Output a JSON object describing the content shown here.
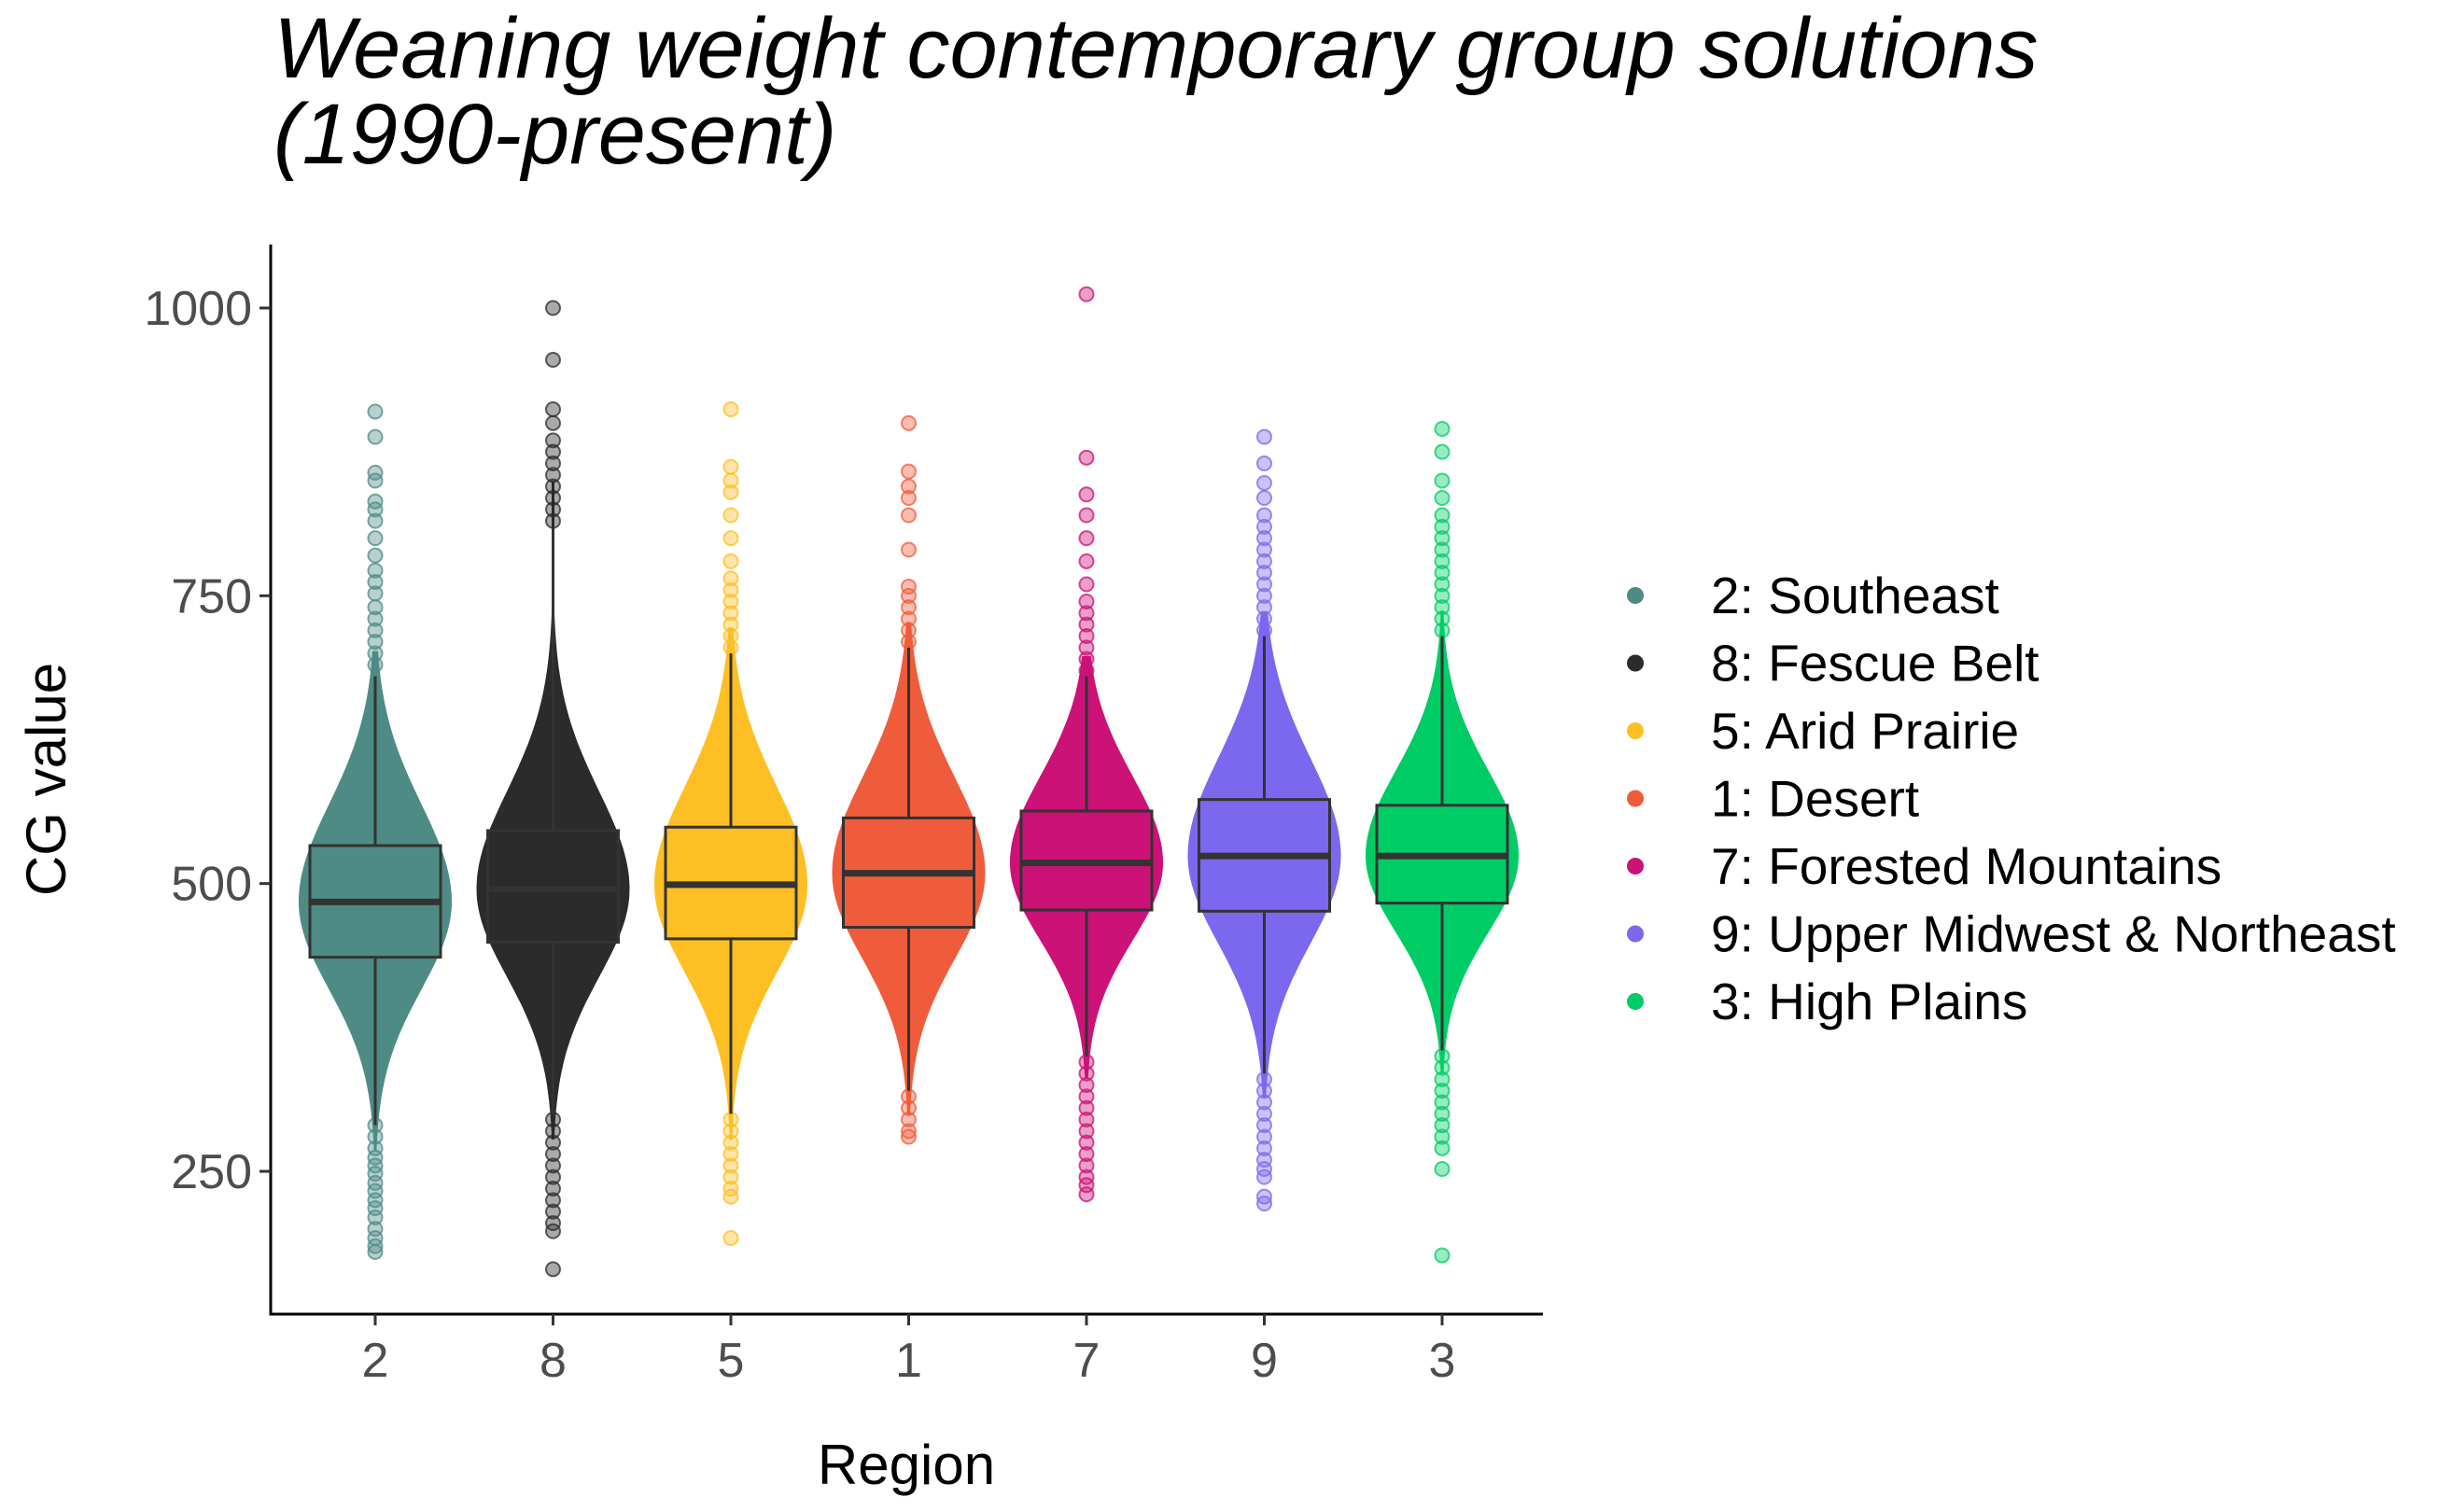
{
  "chart_data": {
    "type": "violin",
    "title": [
      "Weaning weight contemporary group solutions",
      "(1990-present)"
    ],
    "xlabel": "Region",
    "ylabel": "CG value",
    "ylim": [
      120,
      1050
    ],
    "yticks": [
      250,
      500,
      750,
      1000
    ],
    "categories": [
      "2",
      "8",
      "5",
      "1",
      "7",
      "9",
      "3"
    ],
    "legend": {
      "position": "right"
    },
    "grid": false,
    "series": [
      {
        "category": "2",
        "name": "2: Southeast",
        "color": "#4e8b85",
        "min": 180,
        "whisker_low": 290,
        "q1": 436,
        "median": 484,
        "q3": 533,
        "whisker_high": 680,
        "max": 910,
        "outliers_low": [
          290,
          280,
          270,
          262,
          255,
          248,
          240,
          233,
          225,
          218,
          210,
          200,
          192,
          185,
          180
        ],
        "outliers_high": [
          690,
          700,
          710,
          720,
          730,
          740,
          752,
          762,
          772,
          785,
          800,
          815,
          825,
          832,
          850,
          857,
          888,
          910
        ]
      },
      {
        "category": "8",
        "name": "8: Fescue Belt",
        "color": "#2b2b2b",
        "min": 165,
        "whisker_low": 300,
        "q1": 449,
        "median": 495,
        "q3": 546,
        "whisker_high": 810,
        "max": 1000,
        "outliers_low": [
          295,
          285,
          275,
          265,
          255,
          245,
          235,
          225,
          215,
          205,
          198,
          165
        ],
        "outliers_high": [
          815,
          825,
          835,
          845,
          855,
          865,
          875,
          885,
          900,
          912,
          955,
          1000
        ]
      },
      {
        "category": "5",
        "name": "5: Arid Prairie",
        "color": "#fdbf24",
        "min": 192,
        "whisker_low": 300,
        "q1": 452,
        "median": 499,
        "q3": 549,
        "whisker_high": 700,
        "max": 912,
        "outliers_low": [
          295,
          285,
          275,
          265,
          255,
          245,
          235,
          228,
          192
        ],
        "outliers_high": [
          705,
          715,
          725,
          735,
          745,
          755,
          765,
          780,
          800,
          820,
          840,
          850,
          862,
          912
        ]
      },
      {
        "category": "1",
        "name": "1: Desert",
        "color": "#ef5c3c",
        "min": 280,
        "whisker_low": 320,
        "q1": 462,
        "median": 509,
        "q3": 557,
        "whisker_high": 705,
        "max": 900,
        "outliers_low": [
          315,
          305,
          295,
          285,
          280
        ],
        "outliers_high": [
          710,
          720,
          730,
          740,
          750,
          758,
          790,
          820,
          835,
          845,
          858,
          900
        ]
      },
      {
        "category": "7",
        "name": "7: Forested Mountains",
        "color": "#cc1177",
        "min": 230,
        "whisker_low": 350,
        "q1": 477,
        "median": 518,
        "q3": 563,
        "whisker_high": 680,
        "max": 1012,
        "outliers_low": [
          345,
          335,
          325,
          315,
          305,
          295,
          285,
          275,
          265,
          255,
          245,
          238,
          230
        ],
        "outliers_high": [
          685,
          695,
          705,
          715,
          725,
          735,
          745,
          760,
          780,
          800,
          820,
          838,
          870,
          1012
        ]
      },
      {
        "category": "9",
        "name": "9: Upper Midwest & Northeast",
        "color": "#7b68ee",
        "min": 222,
        "whisker_low": 335,
        "q1": 476,
        "median": 524,
        "q3": 573,
        "whisker_high": 715,
        "max": 888,
        "outliers_low": [
          330,
          320,
          310,
          300,
          290,
          280,
          270,
          260,
          252,
          245,
          228,
          222
        ],
        "outliers_high": [
          720,
          730,
          740,
          750,
          760,
          770,
          780,
          790,
          800,
          810,
          820,
          835,
          848,
          865,
          888
        ]
      },
      {
        "category": "3",
        "name": "3: High Plains",
        "color": "#00cc66",
        "min": 177,
        "whisker_low": 355,
        "q1": 483,
        "median": 524,
        "q3": 568,
        "whisker_high": 715,
        "max": 895,
        "outliers_low": [
          350,
          340,
          330,
          320,
          310,
          300,
          290,
          280,
          270,
          252,
          177
        ],
        "outliers_high": [
          720,
          730,
          740,
          750,
          760,
          770,
          780,
          790,
          800,
          810,
          820,
          835,
          850,
          875,
          895
        ]
      }
    ]
  }
}
